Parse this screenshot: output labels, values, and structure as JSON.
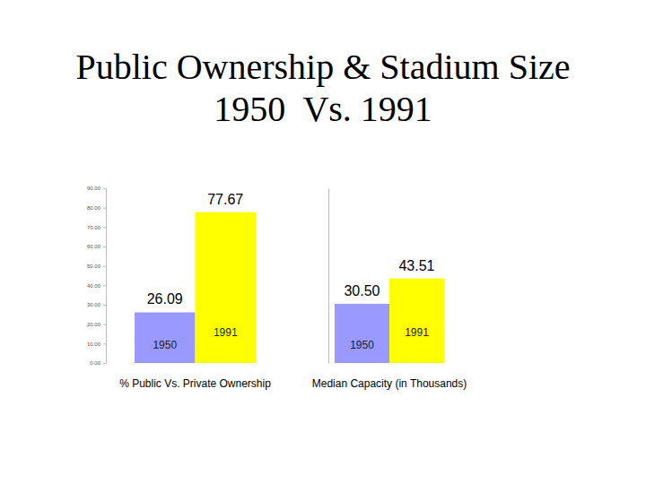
{
  "chart_data": [
    {
      "type": "bar",
      "title": "Public Ownership & Stadium Size 1950  Vs. 1991",
      "xlabel": "% Public Vs. Private Ownership",
      "categories": [
        "1950",
        "1991"
      ],
      "values": [
        26.09,
        77.67
      ],
      "colors": [
        "#9999ff",
        "#ffff00"
      ],
      "data_labels": true,
      "ylim": [
        0,
        90
      ],
      "yticks": [
        {
          "value": 0,
          "label": "0.00"
        },
        {
          "value": 10,
          "label": "10.00"
        },
        {
          "value": 20,
          "label": "20.00"
        },
        {
          "value": 30,
          "label": "30.00"
        },
        {
          "value": 40,
          "label": "40.00"
        },
        {
          "value": 50,
          "label": "50.00"
        },
        {
          "value": 60,
          "label": "60.00"
        },
        {
          "value": 70,
          "label": "70.00"
        },
        {
          "value": 80,
          "label": "80.00"
        },
        {
          "value": 90,
          "label": "90.00"
        }
      ]
    },
    {
      "type": "bar",
      "xlabel": "Median Capacity (in Thousands)",
      "categories": [
        "1950",
        "1991"
      ],
      "values": [
        30.5,
        43.51
      ],
      "value_labels": [
        "30.50",
        "43.51"
      ],
      "colors": [
        "#9999ff",
        "#ffff00"
      ],
      "data_labels": true,
      "ylim": [
        0,
        90
      ]
    }
  ]
}
